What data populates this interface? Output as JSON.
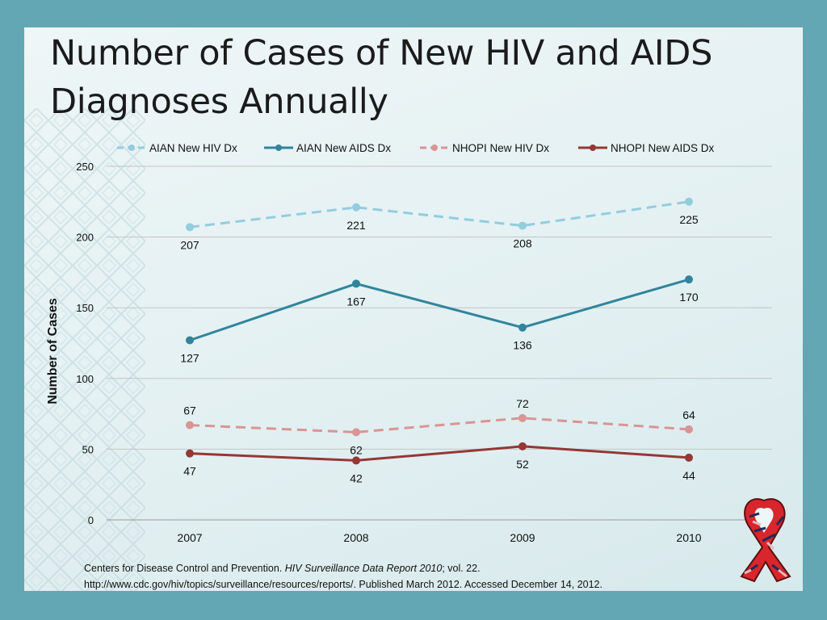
{
  "slide": {
    "title": "Number of Cases of New HIV and AIDS Diagnoses Annually",
    "source": {
      "prefix": "Centers for Disease Control and Prevention. ",
      "report": "HIV Surveillance Data Report 2010",
      "suffix": "; vol. 22.",
      "line2": "http://www.cdc.gov/hiv/topics/surveillance/resources/reports/.  Published March 2012.  Accessed December 14, 2012."
    }
  },
  "chart_data": {
    "type": "line",
    "title": "Number of Cases of New HIV and AIDS Diagnoses Annually",
    "xlabel": "",
    "ylabel": "Number of Cases",
    "categories": [
      "2007",
      "2008",
      "2009",
      "2010"
    ],
    "ylim": [
      0,
      250
    ],
    "yticks": [
      0,
      50,
      100,
      150,
      200,
      250
    ],
    "grid": true,
    "legend_position": "top",
    "series": [
      {
        "name": "AIAN New HIV Dx",
        "values": [
          207,
          221,
          208,
          225
        ],
        "color": "#93cddd",
        "dashed": true,
        "labels_below": [
          true,
          true,
          true,
          true
        ]
      },
      {
        "name": "AIAN New AIDS Dx",
        "values": [
          127,
          167,
          136,
          170
        ],
        "color": "#31849b",
        "dashed": false,
        "labels_below": [
          true,
          true,
          true,
          true
        ]
      },
      {
        "name": "NHOPI New HIV Dx",
        "values": [
          67,
          62,
          72,
          64
        ],
        "color": "#d99594",
        "dashed": true,
        "labels_below": [
          false,
          true,
          false,
          false
        ]
      },
      {
        "name": "NHOPI New AIDS Dx",
        "values": [
          47,
          42,
          52,
          44
        ],
        "color": "#953735",
        "dashed": false,
        "labels_below": [
          true,
          true,
          true,
          true
        ]
      }
    ]
  }
}
